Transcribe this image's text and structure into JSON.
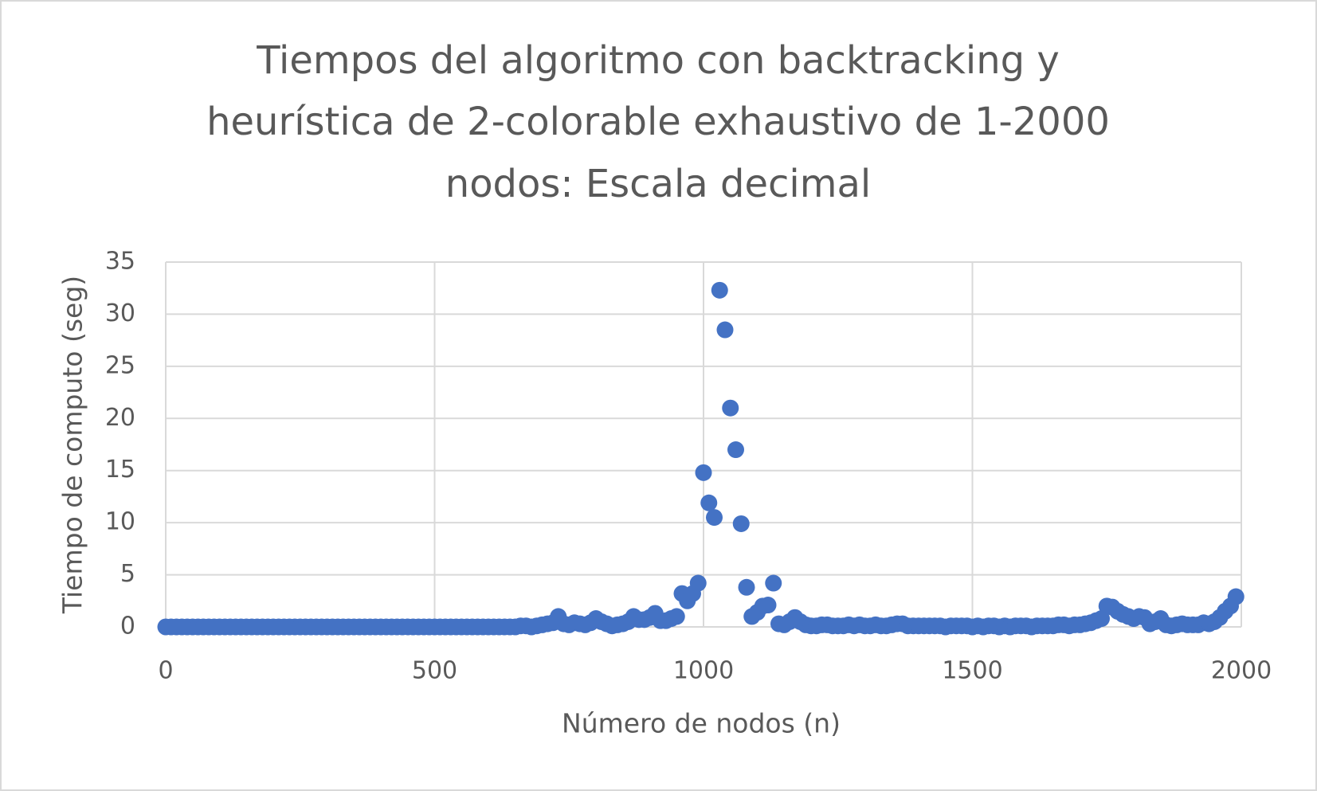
{
  "chart_data": {
    "type": "scatter",
    "title": [
      "Tiempos del algoritmo con backtracking y",
      "heurística de 2-colorable exhaustivo de 1-2000",
      "nodos: Escala decimal"
    ],
    "x_label": "Número de nodos (n)",
    "y_label": "Tiempo de computo (seg)",
    "xlim": [
      0,
      2000
    ],
    "xticks": [
      0,
      500,
      1000,
      1500,
      2000
    ],
    "ylim": [
      0,
      35
    ],
    "yticks": [
      0,
      5,
      10,
      15,
      20,
      25,
      30,
      35
    ],
    "grid": true,
    "color": "#4472c4",
    "x": [
      0,
      10,
      20,
      30,
      40,
      50,
      60,
      70,
      80,
      90,
      100,
      110,
      120,
      130,
      140,
      150,
      160,
      170,
      180,
      190,
      200,
      210,
      220,
      230,
      240,
      250,
      260,
      270,
      280,
      290,
      300,
      310,
      320,
      330,
      340,
      350,
      360,
      370,
      380,
      390,
      400,
      410,
      420,
      430,
      440,
      450,
      460,
      470,
      480,
      490,
      500,
      510,
      520,
      530,
      540,
      550,
      560,
      570,
      580,
      590,
      600,
      610,
      620,
      630,
      640,
      650,
      660,
      670,
      680,
      690,
      700,
      710,
      720,
      730,
      740,
      750,
      760,
      770,
      780,
      790,
      800,
      810,
      820,
      830,
      840,
      850,
      860,
      870,
      880,
      890,
      900,
      910,
      920,
      930,
      940,
      950,
      960,
      970,
      980,
      990,
      1000,
      1010,
      1020,
      1030,
      1040,
      1050,
      1060,
      1070,
      1080,
      1090,
      1100,
      1110,
      1120,
      1130,
      1140,
      1150,
      1160,
      1170,
      1180,
      1190,
      1200,
      1210,
      1220,
      1230,
      1240,
      1250,
      1260,
      1270,
      1280,
      1290,
      1300,
      1310,
      1320,
      1330,
      1340,
      1350,
      1360,
      1370,
      1380,
      1390,
      1400,
      1410,
      1420,
      1430,
      1440,
      1450,
      1460,
      1470,
      1480,
      1490,
      1500,
      1510,
      1520,
      1530,
      1540,
      1550,
      1560,
      1570,
      1580,
      1590,
      1600,
      1610,
      1620,
      1630,
      1640,
      1650,
      1660,
      1670,
      1680,
      1690,
      1700,
      1710,
      1720,
      1730,
      1740,
      1750,
      1760,
      1770,
      1780,
      1790,
      1800,
      1810,
      1820,
      1830,
      1840,
      1850,
      1860,
      1870,
      1880,
      1890,
      1900,
      1910,
      1920,
      1930,
      1940,
      1950,
      1960,
      1970,
      1980,
      1990
    ],
    "values": [
      0,
      0,
      0,
      0,
      0,
      0,
      0,
      0,
      0,
      0,
      0,
      0,
      0,
      0,
      0,
      0,
      0,
      0,
      0,
      0,
      0,
      0,
      0,
      0,
      0,
      0,
      0,
      0,
      0,
      0,
      0,
      0,
      0,
      0,
      0,
      0,
      0,
      0,
      0,
      0,
      0,
      0,
      0,
      0,
      0,
      0,
      0,
      0,
      0,
      0,
      0,
      0,
      0,
      0,
      0,
      0,
      0,
      0,
      0,
      0,
      0,
      0,
      0,
      0,
      0,
      0,
      0.1,
      0.1,
      0,
      0.1,
      0.2,
      0.3,
      0.4,
      1.0,
      0.3,
      0.2,
      0.4,
      0.3,
      0.2,
      0.4,
      0.8,
      0.5,
      0.3,
      0.1,
      0.2,
      0.3,
      0.5,
      1.0,
      0.7,
      0.7,
      0.9,
      1.3,
      0.6,
      0.6,
      0.8,
      1.0,
      3.2,
      2.5,
      3.2,
      4.2,
      14.8,
      11.9,
      10.5,
      32.3,
      28.5,
      21.0,
      17.0,
      9.9,
      3.8,
      1.0,
      1.4,
      2.0,
      2.1,
      4.2,
      0.3,
      0.2,
      0.5,
      0.9,
      0.5,
      0.2,
      0.1,
      0.1,
      0.2,
      0.2,
      0.1,
      0.1,
      0.1,
      0.2,
      0.1,
      0.2,
      0.1,
      0.1,
      0.2,
      0.1,
      0.1,
      0.2,
      0.3,
      0.3,
      0.1,
      0.1,
      0.1,
      0.1,
      0.1,
      0.1,
      0.1,
      0,
      0.1,
      0.1,
      0.1,
      0.1,
      0,
      0.1,
      0,
      0.1,
      0.1,
      0,
      0.1,
      0,
      0.1,
      0.1,
      0.1,
      0,
      0.1,
      0.1,
      0.1,
      0.1,
      0.2,
      0.2,
      0.1,
      0.2,
      0.2,
      0.3,
      0.4,
      0.6,
      0.8,
      2.0,
      1.9,
      1.5,
      1.2,
      1.0,
      0.8,
      1.0,
      0.9,
      0.3,
      0.5,
      0.8,
      0.2,
      0.1,
      0.2,
      0.3,
      0.2,
      0.2,
      0.2,
      0.4,
      0.3,
      0.5,
      0.9,
      1.5,
      2.0,
      2.9
    ]
  }
}
